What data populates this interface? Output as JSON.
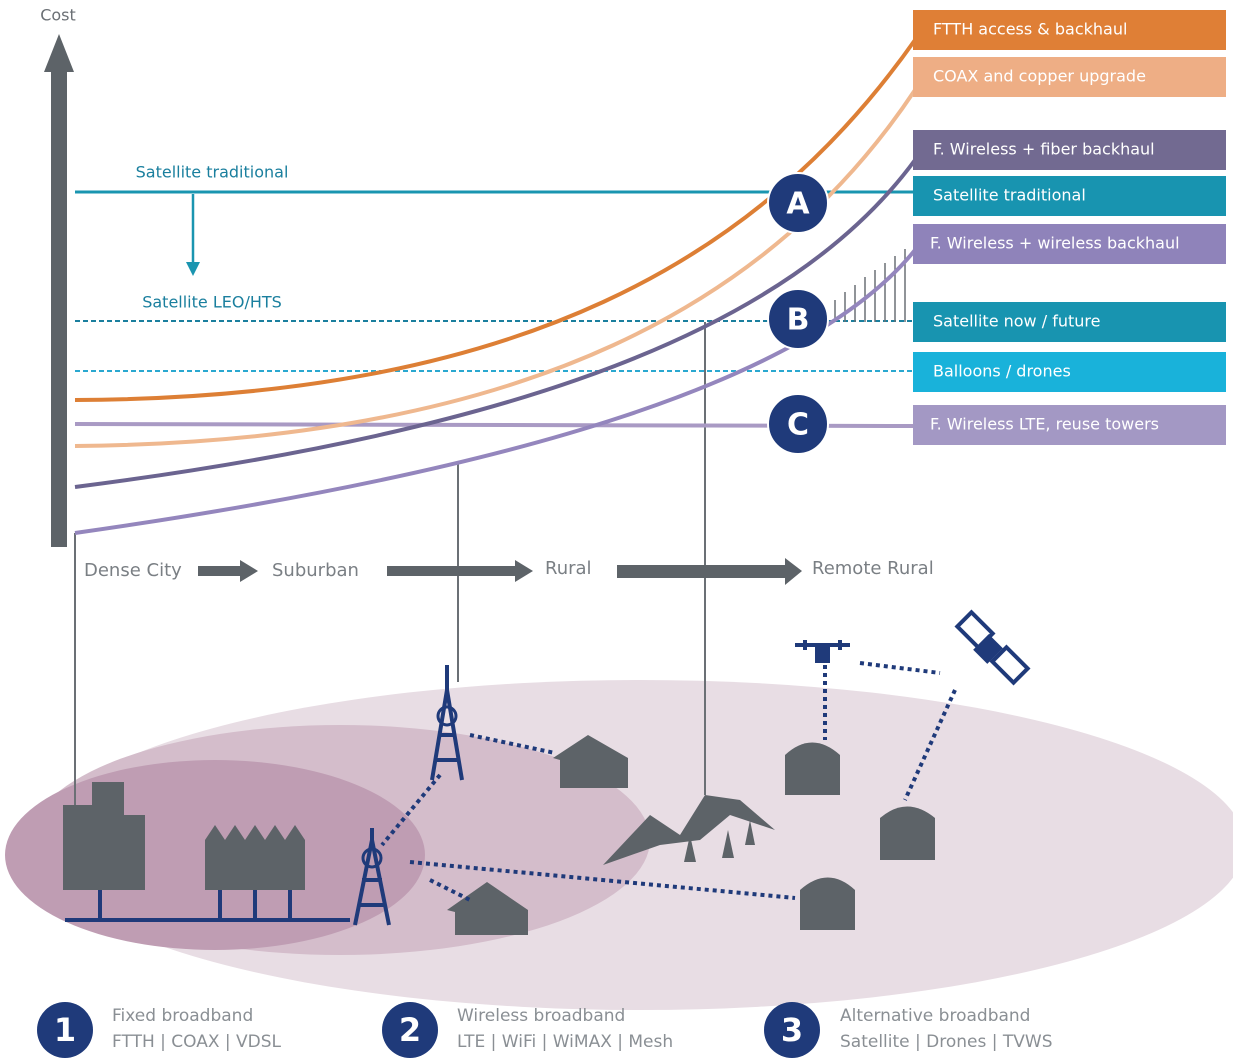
{
  "axis_label": "Cost",
  "line_labels": [
    "Satellite traditional",
    "Satellite LEO/HTS"
  ],
  "legend_boxes": [
    "FTTH access & backhaul",
    "COAX and copper upgrade",
    "F. Wireless + fiber backhaul",
    "Satellite traditional",
    "F. Wireless + wireless backhaul",
    "Satellite now / future",
    "Balloons / drones",
    "F. Wireless LTE, reuse towers"
  ],
  "markers": [
    "A",
    "B",
    "C"
  ],
  "zones": [
    "Dense City",
    "Suburban",
    "Rural",
    "Remote Rural"
  ],
  "categories": [
    {
      "number": "1",
      "title": "Fixed broadband",
      "subtitle": "FTTH | COAX | VDSL"
    },
    {
      "number": "2",
      "title": "Wireless broadband",
      "subtitle": "LTE | WiFi | WiMAX | Mesh"
    },
    {
      "number": "3",
      "title": "Alternative broadband",
      "subtitle": "Satellite | Drones | TVWS"
    }
  ]
}
